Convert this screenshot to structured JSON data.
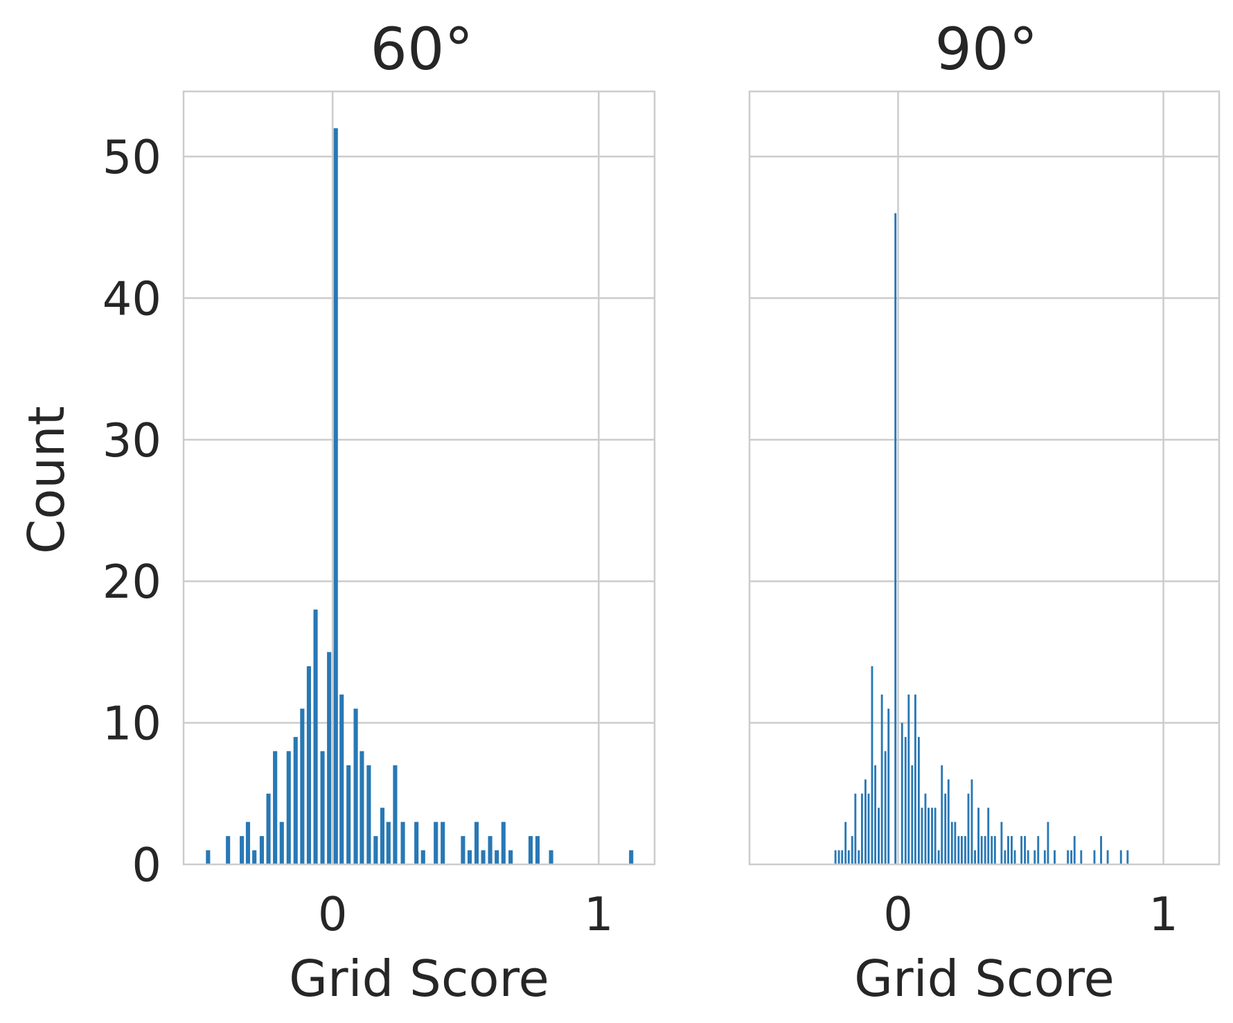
{
  "colors": {
    "bar": "#2878b5",
    "grid": "#cccccc",
    "text": "#262626"
  },
  "chart_data": [
    {
      "type": "bar",
      "title": "60°",
      "xlabel": "Grid Score",
      "ylabel": "Count",
      "xlim": [
        -0.56,
        1.21
      ],
      "ylim": [
        0,
        54.6
      ],
      "xticks": [
        {
          "value": 0,
          "label": "0"
        },
        {
          "value": 1,
          "label": "1"
        }
      ],
      "yticks": [
        {
          "value": 0,
          "label": "0"
        },
        {
          "value": 10,
          "label": "10"
        },
        {
          "value": 20,
          "label": "20"
        },
        {
          "value": 30,
          "label": "30"
        },
        {
          "value": 40,
          "label": "40"
        },
        {
          "value": 50,
          "label": "50"
        }
      ],
      "grid": true,
      "bin_width": 0.0159,
      "bars": [
        {
          "x": -0.468,
          "y": 1
        },
        {
          "x": -0.393,
          "y": 2
        },
        {
          "x": -0.341,
          "y": 2
        },
        {
          "x": -0.318,
          "y": 3
        },
        {
          "x": -0.294,
          "y": 1
        },
        {
          "x": -0.266,
          "y": 2
        },
        {
          "x": -0.241,
          "y": 5
        },
        {
          "x": -0.216,
          "y": 8
        },
        {
          "x": -0.191,
          "y": 3
        },
        {
          "x": -0.165,
          "y": 8
        },
        {
          "x": -0.139,
          "y": 9
        },
        {
          "x": -0.114,
          "y": 11
        },
        {
          "x": -0.089,
          "y": 14
        },
        {
          "x": -0.064,
          "y": 18
        },
        {
          "x": -0.038,
          "y": 8
        },
        {
          "x": -0.013,
          "y": 15
        },
        {
          "x": 0.012,
          "y": 52
        },
        {
          "x": 0.034,
          "y": 12
        },
        {
          "x": 0.06,
          "y": 7
        },
        {
          "x": 0.087,
          "y": 11
        },
        {
          "x": 0.11,
          "y": 8
        },
        {
          "x": 0.136,
          "y": 7
        },
        {
          "x": 0.162,
          "y": 2
        },
        {
          "x": 0.187,
          "y": 4
        },
        {
          "x": 0.21,
          "y": 3
        },
        {
          "x": 0.235,
          "y": 7
        },
        {
          "x": 0.264,
          "y": 3
        },
        {
          "x": 0.315,
          "y": 3
        },
        {
          "x": 0.34,
          "y": 1
        },
        {
          "x": 0.388,
          "y": 3
        },
        {
          "x": 0.414,
          "y": 3
        },
        {
          "x": 0.49,
          "y": 2
        },
        {
          "x": 0.515,
          "y": 1
        },
        {
          "x": 0.541,
          "y": 3
        },
        {
          "x": 0.566,
          "y": 1
        },
        {
          "x": 0.592,
          "y": 2
        },
        {
          "x": 0.617,
          "y": 1
        },
        {
          "x": 0.642,
          "y": 3
        },
        {
          "x": 0.669,
          "y": 1
        },
        {
          "x": 0.744,
          "y": 2
        },
        {
          "x": 0.77,
          "y": 2
        },
        {
          "x": 0.821,
          "y": 1
        },
        {
          "x": 1.122,
          "y": 1
        }
      ]
    },
    {
      "type": "bar",
      "title": "90°",
      "xlabel": "Grid Score",
      "ylabel": "",
      "xlim": [
        -0.56,
        1.21
      ],
      "ylim": [
        0,
        54.6
      ],
      "xticks": [
        {
          "value": 0,
          "label": "0"
        },
        {
          "value": 1,
          "label": "1"
        }
      ],
      "yticks": [],
      "grid": true,
      "bin_width": 0.0075,
      "bars": [
        {
          "x": -0.236,
          "y": 1
        },
        {
          "x": -0.223,
          "y": 1
        },
        {
          "x": -0.211,
          "y": 1
        },
        {
          "x": -0.198,
          "y": 3
        },
        {
          "x": -0.186,
          "y": 1
        },
        {
          "x": -0.173,
          "y": 2
        },
        {
          "x": -0.161,
          "y": 5
        },
        {
          "x": -0.148,
          "y": 1
        },
        {
          "x": -0.136,
          "y": 5
        },
        {
          "x": -0.123,
          "y": 6
        },
        {
          "x": -0.111,
          "y": 5
        },
        {
          "x": -0.098,
          "y": 14
        },
        {
          "x": -0.086,
          "y": 7
        },
        {
          "x": -0.073,
          "y": 4
        },
        {
          "x": -0.061,
          "y": 12
        },
        {
          "x": -0.048,
          "y": 8
        },
        {
          "x": -0.036,
          "y": 11
        },
        {
          "x": -0.01,
          "y": 46
        },
        {
          "x": 0.015,
          "y": 10
        },
        {
          "x": 0.028,
          "y": 9
        },
        {
          "x": 0.04,
          "y": 12
        },
        {
          "x": 0.053,
          "y": 7
        },
        {
          "x": 0.065,
          "y": 12
        },
        {
          "x": 0.078,
          "y": 9
        },
        {
          "x": 0.09,
          "y": 4
        },
        {
          "x": 0.103,
          "y": 5
        },
        {
          "x": 0.115,
          "y": 4
        },
        {
          "x": 0.128,
          "y": 4
        },
        {
          "x": 0.14,
          "y": 4
        },
        {
          "x": 0.153,
          "y": 1
        },
        {
          "x": 0.165,
          "y": 7
        },
        {
          "x": 0.178,
          "y": 5
        },
        {
          "x": 0.19,
          "y": 6
        },
        {
          "x": 0.203,
          "y": 3
        },
        {
          "x": 0.215,
          "y": 3
        },
        {
          "x": 0.228,
          "y": 2
        },
        {
          "x": 0.24,
          "y": 2
        },
        {
          "x": 0.253,
          "y": 2
        },
        {
          "x": 0.265,
          "y": 5
        },
        {
          "x": 0.278,
          "y": 6
        },
        {
          "x": 0.29,
          "y": 1
        },
        {
          "x": 0.303,
          "y": 4
        },
        {
          "x": 0.315,
          "y": 2
        },
        {
          "x": 0.328,
          "y": 2
        },
        {
          "x": 0.34,
          "y": 4
        },
        {
          "x": 0.353,
          "y": 2
        },
        {
          "x": 0.365,
          "y": 2
        },
        {
          "x": 0.39,
          "y": 3
        },
        {
          "x": 0.403,
          "y": 1
        },
        {
          "x": 0.415,
          "y": 2
        },
        {
          "x": 0.428,
          "y": 2
        },
        {
          "x": 0.44,
          "y": 1
        },
        {
          "x": 0.465,
          "y": 2
        },
        {
          "x": 0.478,
          "y": 2
        },
        {
          "x": 0.49,
          "y": 1
        },
        {
          "x": 0.515,
          "y": 1
        },
        {
          "x": 0.528,
          "y": 2
        },
        {
          "x": 0.553,
          "y": 1
        },
        {
          "x": 0.565,
          "y": 3
        },
        {
          "x": 0.59,
          "y": 1
        },
        {
          "x": 0.64,
          "y": 1
        },
        {
          "x": 0.653,
          "y": 1
        },
        {
          "x": 0.665,
          "y": 2
        },
        {
          "x": 0.69,
          "y": 1
        },
        {
          "x": 0.74,
          "y": 1
        },
        {
          "x": 0.765,
          "y": 2
        },
        {
          "x": 0.79,
          "y": 1
        },
        {
          "x": 0.84,
          "y": 1
        },
        {
          "x": 0.865,
          "y": 1
        }
      ]
    }
  ]
}
